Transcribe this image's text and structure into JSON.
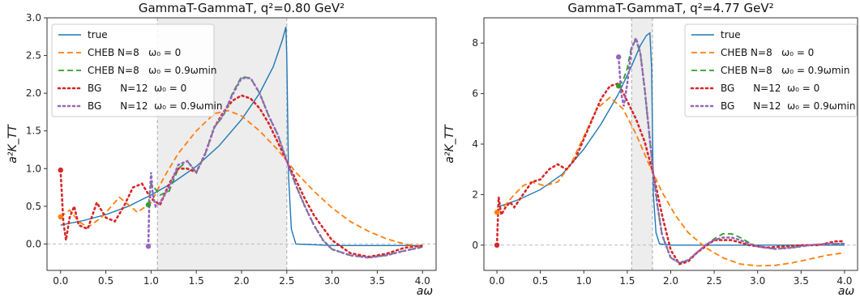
{
  "chart_data": [
    {
      "type": "line",
      "title": "GammaT-GammaT,  q²=0.80 GeV²",
      "xlabel": "aω",
      "ylabel": "a²K_TT",
      "xlim": [
        -0.15,
        4.15
      ],
      "ylim": [
        -0.35,
        3.0
      ],
      "xticks": [
        "0.0",
        "0.5",
        "1.0",
        "1.5",
        "2.0",
        "2.5",
        "3.0",
        "3.5",
        "4.0"
      ],
      "yticks": [
        "0.0",
        "0.5",
        "1.0",
        "1.5",
        "2.0",
        "2.5",
        "3.0"
      ],
      "shaded_region": [
        1.07,
        2.5
      ],
      "legend_position": "top-left",
      "colors": {
        "true": "#1f77b4",
        "cheb0": "#ff7f0e",
        "cheb09": "#2ca02c",
        "bg0": "#d62728",
        "bg09": "#9467bd"
      },
      "series": [
        {
          "name": "true",
          "style": "solid",
          "x": [
            0.0,
            0.25,
            0.5,
            0.75,
            1.0,
            1.25,
            1.5,
            1.75,
            2.0,
            2.2,
            2.35,
            2.45,
            2.49,
            2.5,
            2.52,
            2.55,
            2.6,
            3.0,
            3.5,
            4.0
          ],
          "y": [
            0.25,
            0.31,
            0.39,
            0.5,
            0.65,
            0.82,
            1.03,
            1.3,
            1.65,
            2.0,
            2.35,
            2.7,
            2.88,
            2.5,
            0.9,
            0.2,
            0.0,
            -0.02,
            -0.02,
            -0.02
          ]
        },
        {
          "name": "CHEB N=8   ω₀ = 0",
          "style": "dashed",
          "x": [
            0.0,
            0.1,
            0.2,
            0.3,
            0.45,
            0.65,
            0.85,
            1.0,
            1.15,
            1.3,
            1.5,
            1.7,
            1.85,
            2.0,
            2.2,
            2.4,
            2.6,
            2.8,
            3.0,
            3.2,
            3.4,
            3.6,
            3.8,
            4.0
          ],
          "y": [
            0.36,
            0.45,
            0.3,
            0.22,
            0.35,
            0.62,
            0.42,
            0.55,
            0.9,
            1.2,
            1.5,
            1.73,
            1.77,
            1.7,
            1.5,
            1.25,
            0.95,
            0.7,
            0.48,
            0.3,
            0.17,
            0.07,
            0.0,
            -0.04
          ]
        },
        {
          "name": "CHEB N=8   ω₀ = 0.9ωmin",
          "style": "dashed",
          "x": [
            0.97,
            1.0,
            1.1,
            1.2,
            1.3,
            1.4,
            1.5,
            1.6,
            1.7,
            1.8,
            1.9,
            2.0,
            2.1,
            2.2,
            2.3,
            2.4,
            2.5,
            2.6,
            2.7,
            2.8,
            2.9,
            3.0,
            3.2,
            3.4,
            3.6,
            3.8,
            4.0
          ],
          "y": [
            0.52,
            0.8,
            0.65,
            0.7,
            1.0,
            1.1,
            0.95,
            1.2,
            1.55,
            1.7,
            2.0,
            2.22,
            2.2,
            2.0,
            1.7,
            1.45,
            1.1,
            0.78,
            0.5,
            0.25,
            0.05,
            -0.07,
            -0.15,
            -0.18,
            -0.15,
            -0.09,
            -0.04
          ]
        },
        {
          "name": "BG      N=12  ω₀ = 0",
          "style": "dotted",
          "x": [
            0.0,
            0.03,
            0.06,
            0.1,
            0.15,
            0.2,
            0.3,
            0.4,
            0.5,
            0.6,
            0.7,
            0.8,
            0.9,
            1.0,
            1.1,
            1.2,
            1.3,
            1.4,
            1.5,
            1.6,
            1.7,
            1.8,
            1.9,
            2.0,
            2.1,
            2.2,
            2.3,
            2.4,
            2.5,
            2.6,
            2.7,
            2.8,
            3.0,
            3.2,
            3.4,
            3.6,
            3.8,
            4.0
          ],
          "y": [
            0.98,
            0.3,
            0.05,
            0.35,
            0.5,
            0.25,
            0.2,
            0.55,
            0.35,
            0.3,
            0.5,
            0.75,
            0.8,
            0.6,
            0.52,
            0.8,
            1.0,
            1.0,
            0.95,
            1.2,
            1.55,
            1.75,
            1.9,
            1.97,
            1.93,
            1.8,
            1.6,
            1.35,
            1.1,
            0.85,
            0.6,
            0.38,
            0.05,
            -0.12,
            -0.17,
            -0.13,
            -0.05,
            -0.02
          ]
        },
        {
          "name": "BG      N=12  ω₀ = 0.9ωmin",
          "style": "dotted",
          "x": [
            0.97,
            0.98,
            1.0,
            1.02,
            1.05,
            1.1,
            1.2,
            1.3,
            1.4,
            1.5,
            1.6,
            1.7,
            1.8,
            1.9,
            2.0,
            2.1,
            2.2,
            2.3,
            2.4,
            2.5,
            2.6,
            2.7,
            2.8,
            2.9,
            3.0,
            3.2,
            3.4,
            3.6,
            3.8,
            4.0
          ],
          "y": [
            -0.03,
            0.5,
            0.95,
            0.65,
            0.5,
            0.55,
            0.75,
            1.05,
            1.1,
            0.95,
            1.2,
            1.55,
            1.72,
            1.98,
            2.2,
            2.2,
            2.0,
            1.7,
            1.45,
            1.1,
            0.78,
            0.5,
            0.25,
            0.05,
            -0.07,
            -0.15,
            -0.18,
            -0.15,
            -0.09,
            -0.04
          ]
        }
      ],
      "markers": [
        {
          "series": "CHEB N=8   ω₀ = 0",
          "x": 0.0,
          "y": 0.36
        },
        {
          "series": "BG      N=12  ω₀ = 0",
          "x": 0.0,
          "y": 0.98
        },
        {
          "series": "CHEB N=8   ω₀ = 0.9ωmin",
          "x": 0.97,
          "y": 0.52
        },
        {
          "series": "BG      N=12  ω₀ = 0.9ωmin",
          "x": 0.97,
          "y": -0.03
        }
      ]
    },
    {
      "type": "line",
      "title": "GammaT-GammaT,  q²=4.77 GeV²",
      "xlabel": "aω",
      "ylabel": "a²K_TT",
      "xlim": [
        -0.15,
        4.15
      ],
      "ylim": [
        -1.0,
        9.0
      ],
      "xticks": [
        "0.0",
        "0.5",
        "1.0",
        "1.5",
        "2.0",
        "2.5",
        "3.0",
        "3.5",
        "4.0"
      ],
      "yticks": [
        "0",
        "2",
        "4",
        "6",
        "8"
      ],
      "shaded_region": [
        1.55,
        1.79
      ],
      "legend_position": "top-right",
      "colors": {
        "true": "#1f77b4",
        "cheb0": "#ff7f0e",
        "cheb09": "#2ca02c",
        "bg0": "#d62728",
        "bg09": "#9467bd"
      },
      "series": [
        {
          "name": "true",
          "style": "solid",
          "x": [
            0.0,
            0.25,
            0.5,
            0.75,
            1.0,
            1.2,
            1.4,
            1.55,
            1.65,
            1.72,
            1.76,
            1.78,
            1.8,
            1.83,
            1.87,
            2.0,
            2.5,
            3.0,
            3.5,
            4.0
          ],
          "y": [
            1.5,
            1.8,
            2.2,
            2.8,
            3.8,
            4.8,
            6.0,
            7.1,
            7.9,
            8.3,
            8.4,
            7.0,
            2.0,
            0.5,
            0.05,
            0.0,
            0.0,
            0.0,
            0.0,
            0.0
          ]
        },
        {
          "name": "CHEB N=8   ω₀ = 0",
          "style": "dashed",
          "x": [
            0.0,
            0.1,
            0.2,
            0.3,
            0.4,
            0.55,
            0.7,
            0.85,
            1.0,
            1.15,
            1.3,
            1.45,
            1.6,
            1.75,
            1.9,
            2.05,
            2.2,
            2.4,
            2.6,
            2.8,
            3.0,
            3.2,
            3.4,
            3.6,
            3.8,
            4.0
          ],
          "y": [
            1.3,
            1.6,
            2.0,
            2.35,
            2.5,
            2.35,
            2.5,
            3.2,
            4.3,
            5.4,
            5.85,
            5.4,
            4.4,
            3.2,
            2.1,
            1.2,
            0.5,
            -0.1,
            -0.5,
            -0.75,
            -0.82,
            -0.8,
            -0.7,
            -0.55,
            -0.4,
            -0.3
          ]
        },
        {
          "name": "CHEB N=8   ω₀ = 0.9ωmin",
          "style": "dashed",
          "x": [
            1.4,
            1.45,
            1.5,
            1.55,
            1.6,
            1.65,
            1.7,
            1.75,
            1.8,
            1.85,
            1.9,
            2.0,
            2.1,
            2.2,
            2.3,
            2.4,
            2.5,
            2.6,
            2.7,
            2.8,
            2.9,
            3.0,
            3.2,
            3.4,
            3.6,
            3.8,
            4.0
          ],
          "y": [
            6.3,
            6.5,
            7.0,
            7.9,
            8.1,
            7.6,
            6.2,
            4.5,
            2.8,
            1.5,
            0.4,
            -0.5,
            -0.7,
            -0.6,
            -0.3,
            0.0,
            0.25,
            0.45,
            0.45,
            0.3,
            0.1,
            -0.05,
            -0.15,
            -0.1,
            0.0,
            0.05,
            0.05
          ]
        },
        {
          "name": "BG      N=12  ω₀ = 0",
          "style": "dotted",
          "x": [
            0.0,
            0.02,
            0.05,
            0.1,
            0.15,
            0.2,
            0.3,
            0.4,
            0.5,
            0.6,
            0.7,
            0.8,
            0.9,
            1.0,
            1.1,
            1.2,
            1.3,
            1.4,
            1.5,
            1.6,
            1.7,
            1.8,
            1.9,
            2.0,
            2.1,
            2.2,
            2.3,
            2.5,
            2.7,
            2.9,
            3.1,
            3.3,
            3.5,
            3.7,
            3.9,
            4.0
          ],
          "y": [
            0.0,
            1.9,
            1.2,
            1.5,
            1.7,
            1.5,
            2.0,
            2.5,
            2.6,
            3.0,
            3.2,
            3.0,
            3.4,
            4.2,
            5.0,
            5.8,
            6.3,
            6.4,
            5.7,
            5.0,
            4.1,
            2.8,
            1.2,
            -0.2,
            -0.75,
            -0.65,
            -0.3,
            0.2,
            0.2,
            0.0,
            -0.1,
            -0.05,
            0.0,
            0.0,
            0.15,
            0.15
          ]
        },
        {
          "name": "BG      N=12  ω₀ = 0.9ωmin",
          "style": "dotted",
          "x": [
            1.4,
            1.43,
            1.46,
            1.5,
            1.55,
            1.6,
            1.65,
            1.7,
            1.75,
            1.8,
            1.85,
            1.9,
            2.0,
            2.1,
            2.2,
            2.3,
            2.4,
            2.5,
            2.6,
            2.7,
            2.8,
            2.9,
            3.0,
            3.2,
            3.4,
            3.6,
            3.8,
            4.0
          ],
          "y": [
            7.45,
            6.0,
            5.5,
            6.4,
            7.8,
            8.2,
            7.6,
            6.2,
            4.5,
            2.8,
            1.5,
            0.4,
            -0.5,
            -0.7,
            -0.6,
            -0.3,
            0.0,
            0.2,
            0.3,
            0.3,
            0.2,
            0.05,
            -0.05,
            -0.15,
            -0.1,
            0.0,
            0.05,
            0.05
          ]
        }
      ],
      "markers": [
        {
          "series": "CHEB N=8   ω₀ = 0",
          "x": 0.0,
          "y": 1.3
        },
        {
          "series": "BG      N=12  ω₀ = 0",
          "x": 0.0,
          "y": 0.0
        },
        {
          "series": "CHEB N=8   ω₀ = 0.9ωmin",
          "x": 1.4,
          "y": 6.3
        },
        {
          "series": "BG      N=12  ω₀ = 0.9ωmin",
          "x": 1.4,
          "y": 7.45
        }
      ]
    }
  ]
}
